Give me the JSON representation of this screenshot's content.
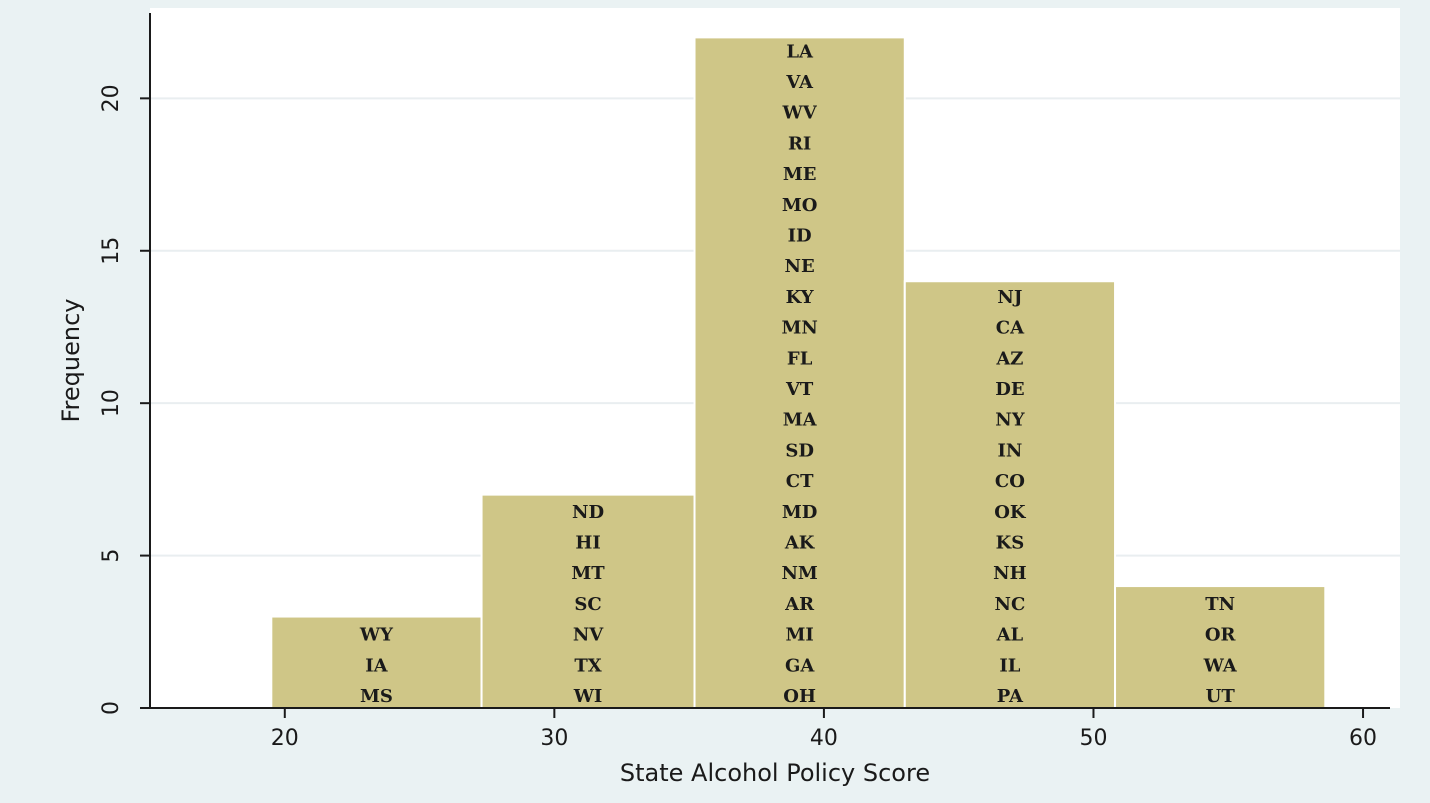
{
  "colors": {
    "page_background": "#ffffff",
    "plot_region_background": "#eaf2f3",
    "plot_background": "#ffffff",
    "bar_fill": "#cfc687",
    "bar_stroke": "#ffffff",
    "gridline": "#e9eef0",
    "axis": "#1a1a1a"
  },
  "chart_data": {
    "type": "bar",
    "title": "",
    "xlabel": "State Alcohol Policy Score",
    "ylabel": "Frequency",
    "xlim": [
      15,
      61
    ],
    "ylim": [
      0,
      22.8
    ],
    "xticks": [
      20,
      30,
      40,
      50,
      60
    ],
    "yticks": [
      0,
      5,
      10,
      15,
      20
    ],
    "grid": true,
    "bins": [
      {
        "x0": 19.5,
        "x1": 27.3,
        "count": 3,
        "states": [
          "WY",
          "IA",
          "MS"
        ]
      },
      {
        "x0": 27.3,
        "x1": 35.2,
        "count": 7,
        "states": [
          "ND",
          "HI",
          "MT",
          "SC",
          "NV",
          "TX",
          "WI"
        ]
      },
      {
        "x0": 35.2,
        "x1": 43.0,
        "count": 22,
        "states": [
          "LA",
          "VA",
          "WV",
          "RI",
          "ME",
          "MO",
          "ID",
          "NE",
          "KY",
          "MN",
          "FL",
          "VT",
          "MA",
          "SD",
          "CT",
          "MD",
          "AK",
          "NM",
          "AR",
          "MI",
          "GA",
          "OH"
        ]
      },
      {
        "x0": 43.0,
        "x1": 50.8,
        "count": 14,
        "states": [
          "NJ",
          "CA",
          "AZ",
          "DE",
          "NY",
          "IN",
          "CO",
          "OK",
          "KS",
          "NH",
          "NC",
          "AL",
          "IL",
          "PA"
        ]
      },
      {
        "x0": 50.8,
        "x1": 58.6,
        "count": 4,
        "states": [
          "TN",
          "OR",
          "WA",
          "UT"
        ]
      }
    ]
  }
}
